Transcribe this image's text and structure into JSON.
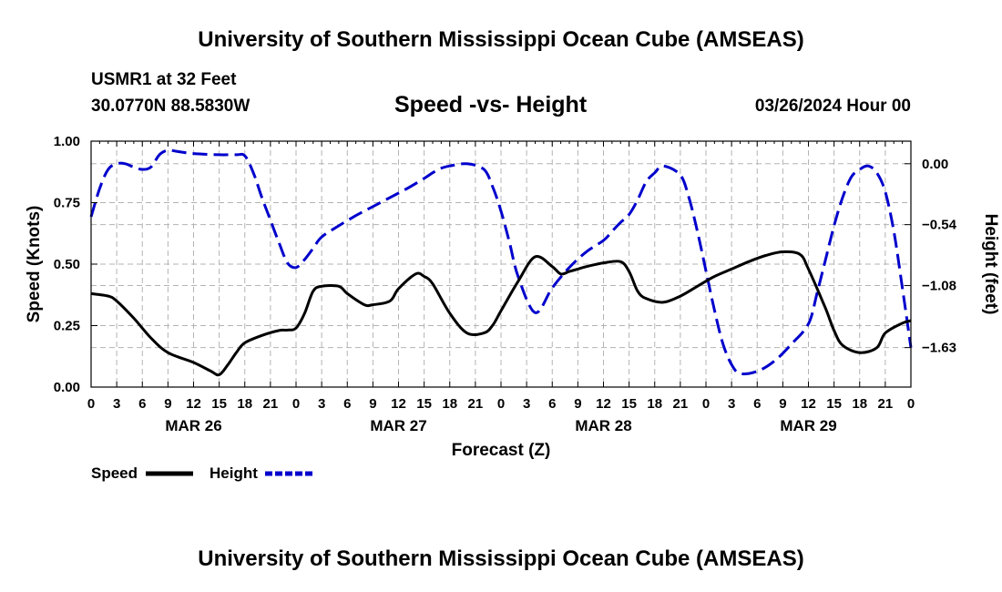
{
  "header": {
    "title": "University of Southern Mississippi Ocean Cube (AMSEAS)",
    "station": "USMR1 at 32 Feet",
    "location": "30.0770N  88.5830W",
    "subtitle": "Speed -vs- Height",
    "datetime": "03/26/2024 Hour 00"
  },
  "footer": {
    "title": "University of Southern Mississippi Ocean Cube (AMSEAS)"
  },
  "chart_data": {
    "type": "line",
    "title": "Speed -vs- Height",
    "xlabel": "Forecast (Z)",
    "ylabel": "Speed (Knots)",
    "y2label": "Height (feet)",
    "xlim": [
      0,
      96
    ],
    "ylim": [
      0,
      1
    ],
    "y2lim": [
      -1.98,
      0.2
    ],
    "x_ticks": [
      0,
      3,
      6,
      9,
      12,
      15,
      18,
      21,
      24,
      27,
      30,
      33,
      36,
      39,
      42,
      45,
      48,
      51,
      54,
      57,
      60,
      63,
      66,
      69,
      72,
      75,
      78,
      81,
      84,
      87,
      90,
      93,
      96
    ],
    "x_tick_labels": [
      "0",
      "3",
      "6",
      "9",
      "12",
      "15",
      "18",
      "21",
      "0",
      "3",
      "6",
      "9",
      "12",
      "15",
      "18",
      "21",
      "0",
      "3",
      "6",
      "9",
      "12",
      "15",
      "18",
      "21",
      "0",
      "3",
      "6",
      "9",
      "12",
      "15",
      "18",
      "21",
      "0"
    ],
    "day_labels": [
      {
        "label": "MAR 26",
        "x": 12
      },
      {
        "label": "MAR 27",
        "x": 36
      },
      {
        "label": "MAR 28",
        "x": 60
      },
      {
        "label": "MAR 29",
        "x": 84
      }
    ],
    "y_ticks": [
      0.0,
      0.25,
      0.5,
      0.75,
      1.0
    ],
    "y_tick_labels": [
      "0.00",
      "0.25",
      "0.50",
      "0.75",
      "1.00"
    ],
    "y2_ticks": [
      0.0,
      -0.54,
      -1.08,
      -1.63
    ],
    "y2_tick_labels": [
      "0.00",
      "-0.54",
      "-1.08",
      "-1.63"
    ],
    "grid": true,
    "legend_position": "bottom-left",
    "series": [
      {
        "name": "Speed",
        "axis": "left",
        "color": "#000000",
        "style": "solid",
        "x": [
          0,
          2,
          3,
          5,
          7,
          9,
          12,
          14,
          15,
          16,
          17,
          18,
          20,
          22,
          23,
          24,
          25,
          26,
          27,
          29,
          30,
          32,
          33,
          35,
          36,
          38,
          39,
          40,
          42,
          44,
          46,
          47,
          48,
          50,
          52,
          54,
          55,
          56,
          57,
          58,
          60,
          62,
          63,
          64,
          65,
          67,
          69,
          71,
          73,
          75,
          77,
          79,
          81,
          83,
          84,
          86,
          87,
          88,
          90,
          92,
          93,
          95,
          96
        ],
        "y": [
          0.38,
          0.37,
          0.35,
          0.28,
          0.2,
          0.14,
          0.1,
          0.065,
          0.05,
          0.09,
          0.14,
          0.18,
          0.21,
          0.23,
          0.232,
          0.24,
          0.3,
          0.39,
          0.41,
          0.41,
          0.38,
          0.335,
          0.335,
          0.35,
          0.4,
          0.46,
          0.45,
          0.42,
          0.3,
          0.22,
          0.22,
          0.25,
          0.31,
          0.43,
          0.53,
          0.49,
          0.46,
          0.47,
          0.48,
          0.49,
          0.505,
          0.51,
          0.47,
          0.39,
          0.36,
          0.345,
          0.37,
          0.41,
          0.45,
          0.48,
          0.51,
          0.535,
          0.55,
          0.54,
          0.48,
          0.32,
          0.23,
          0.17,
          0.14,
          0.16,
          0.22,
          0.26,
          0.27
        ]
      },
      {
        "name": "Height",
        "axis": "right",
        "color": "#0000cc",
        "style": "dashed",
        "x": [
          0,
          1,
          2,
          3,
          4,
          5,
          6,
          7,
          8,
          9,
          10,
          12,
          15,
          17,
          18,
          19,
          20,
          21,
          22,
          23,
          24,
          25,
          26,
          27,
          29,
          31,
          33,
          35,
          37,
          39,
          40,
          41,
          42,
          44,
          46,
          47,
          48,
          49,
          50,
          52,
          54,
          56,
          58,
          60,
          61,
          62,
          63,
          64,
          65,
          66,
          67,
          69,
          70,
          71,
          72,
          73,
          74,
          75,
          76,
          78,
          80,
          82,
          84,
          85,
          86,
          87,
          88,
          89,
          90,
          91,
          92,
          93,
          94,
          95,
          96
        ],
        "y": [
          -0.47,
          -0.22,
          -0.05,
          0.0,
          0.0,
          -0.03,
          -0.05,
          -0.03,
          0.08,
          0.12,
          0.11,
          0.09,
          0.08,
          0.08,
          0.07,
          -0.08,
          -0.3,
          -0.5,
          -0.7,
          -0.88,
          -0.92,
          -0.85,
          -0.75,
          -0.65,
          -0.55,
          -0.46,
          -0.38,
          -0.3,
          -0.22,
          -0.13,
          -0.08,
          -0.04,
          -0.02,
          0.0,
          -0.05,
          -0.2,
          -0.42,
          -0.7,
          -1.0,
          -1.32,
          -1.1,
          -0.92,
          -0.78,
          -0.68,
          -0.6,
          -0.52,
          -0.45,
          -0.32,
          -0.16,
          -0.08,
          -0.02,
          -0.1,
          -0.3,
          -0.6,
          -0.95,
          -1.3,
          -1.6,
          -1.78,
          -1.86,
          -1.84,
          -1.75,
          -1.6,
          -1.42,
          -1.15,
          -0.85,
          -0.55,
          -0.3,
          -0.12,
          -0.05,
          -0.02,
          -0.08,
          -0.25,
          -0.6,
          -1.1,
          -1.63
        ]
      }
    ]
  }
}
